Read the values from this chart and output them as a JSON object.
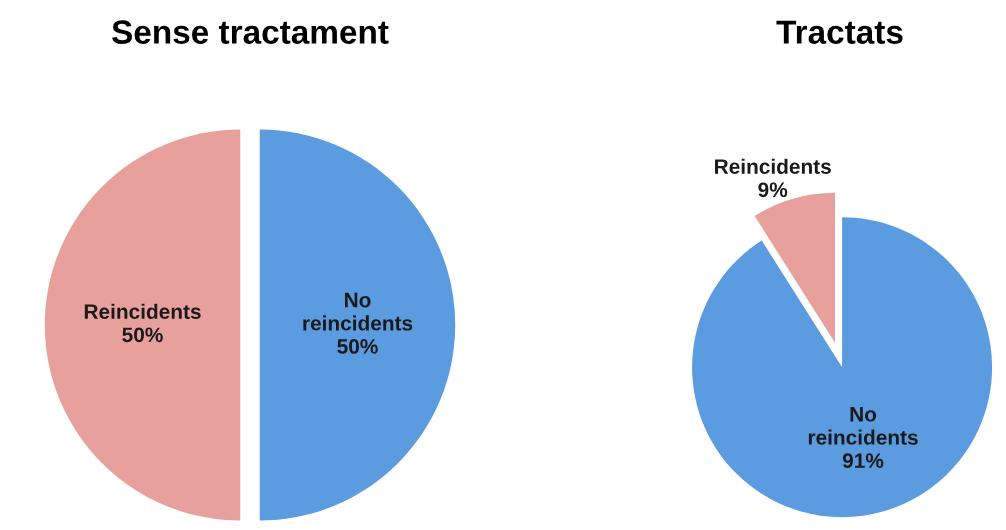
{
  "chart_data": [
    {
      "type": "pie",
      "title": "Sense tractament",
      "categories": [
        "No reincidents",
        "Reincidents"
      ],
      "values": [
        50,
        50
      ],
      "value_labels": [
        "50%",
        "50%"
      ],
      "colors": [
        "#5b9be0",
        "#e8a09c"
      ]
    },
    {
      "type": "pie",
      "title": "Tractats",
      "categories": [
        "No reincidents",
        "Reincidents"
      ],
      "values": [
        91,
        9
      ],
      "value_labels": [
        "91%",
        "9%"
      ],
      "colors": [
        "#5b9be0",
        "#e8a09c"
      ]
    }
  ]
}
